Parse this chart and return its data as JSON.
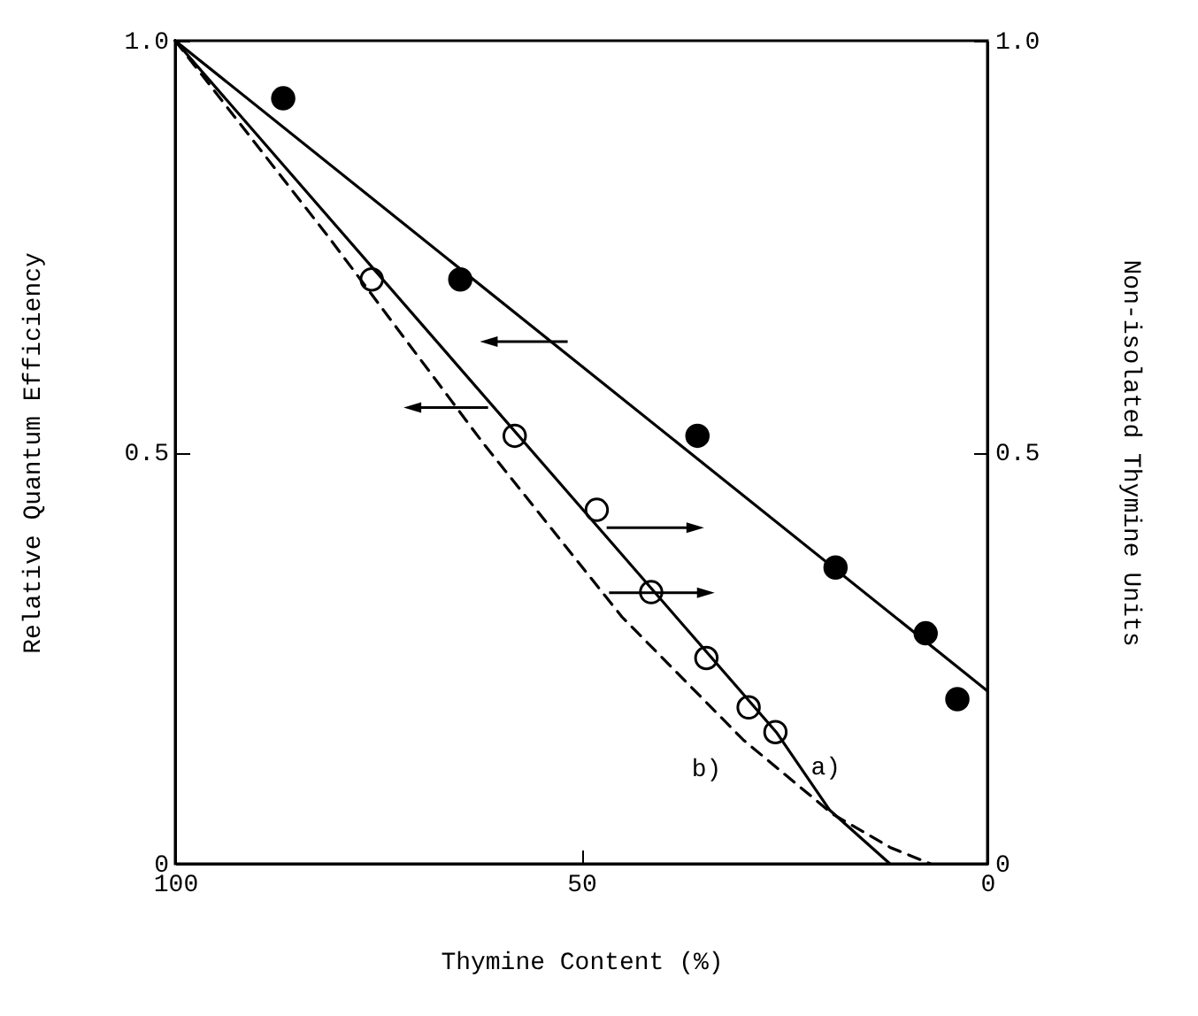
{
  "chart_data": {
    "type": "scatter",
    "xlabel": "Thymine Content (%)",
    "ylabel": "Relative Quantum Efficiency",
    "y2label": "Non-isolated Thymine Units",
    "xlim": [
      100,
      0
    ],
    "xticks": [
      100,
      50,
      0
    ],
    "ylim": [
      0,
      1
    ],
    "yticks": [
      0,
      0.5,
      {
        "value": 1,
        "label": "1.0"
      }
    ],
    "y2lim": [
      0,
      1
    ],
    "y2ticks": [
      0,
      0.5,
      {
        "value": 1,
        "label": "1.0"
      }
    ],
    "grid": false,
    "marker": "circle",
    "series": [
      {
        "color": "#000000",
        "x": [
          86.7,
          64.9,
          35.7,
          18.7,
          7.6,
          3.7
        ],
        "values": [
          0.93,
          0.71,
          0.52,
          0.36,
          0.28,
          0.2
        ]
      },
      {
        "type": "line",
        "color": "#000000",
        "line_style": "solid",
        "marker": "none",
        "x": [
          100,
          0
        ],
        "values": [
          1.0,
          0.21
        ]
      },
      {
        "color": "#ffffff",
        "x": [
          75.8,
          58.2,
          48.1,
          41.4,
          34.6,
          29.4,
          26.1
        ],
        "values": [
          0.71,
          0.52,
          0.43,
          0.33,
          0.25,
          0.19,
          0.16
        ]
      },
      {
        "type": "line",
        "axis": "y2",
        "name": "a)",
        "color": "#000000",
        "line_style": "solid",
        "marker": "none",
        "x": [
          100,
          26,
          19.4,
          12
        ],
        "values": [
          1.0,
          0.16,
          0.065,
          0
        ]
      },
      {
        "type": "line",
        "axis": "y2",
        "name": "b)",
        "color": "#000000",
        "line_style": "dashed",
        "marker": "none",
        "x": [
          100,
          81,
          62,
          45,
          30,
          19,
          12,
          7
        ],
        "values": [
          1.0,
          0.76,
          0.51,
          0.3,
          0.15,
          0.06,
          0.02,
          0
        ]
      }
    ]
  }
}
